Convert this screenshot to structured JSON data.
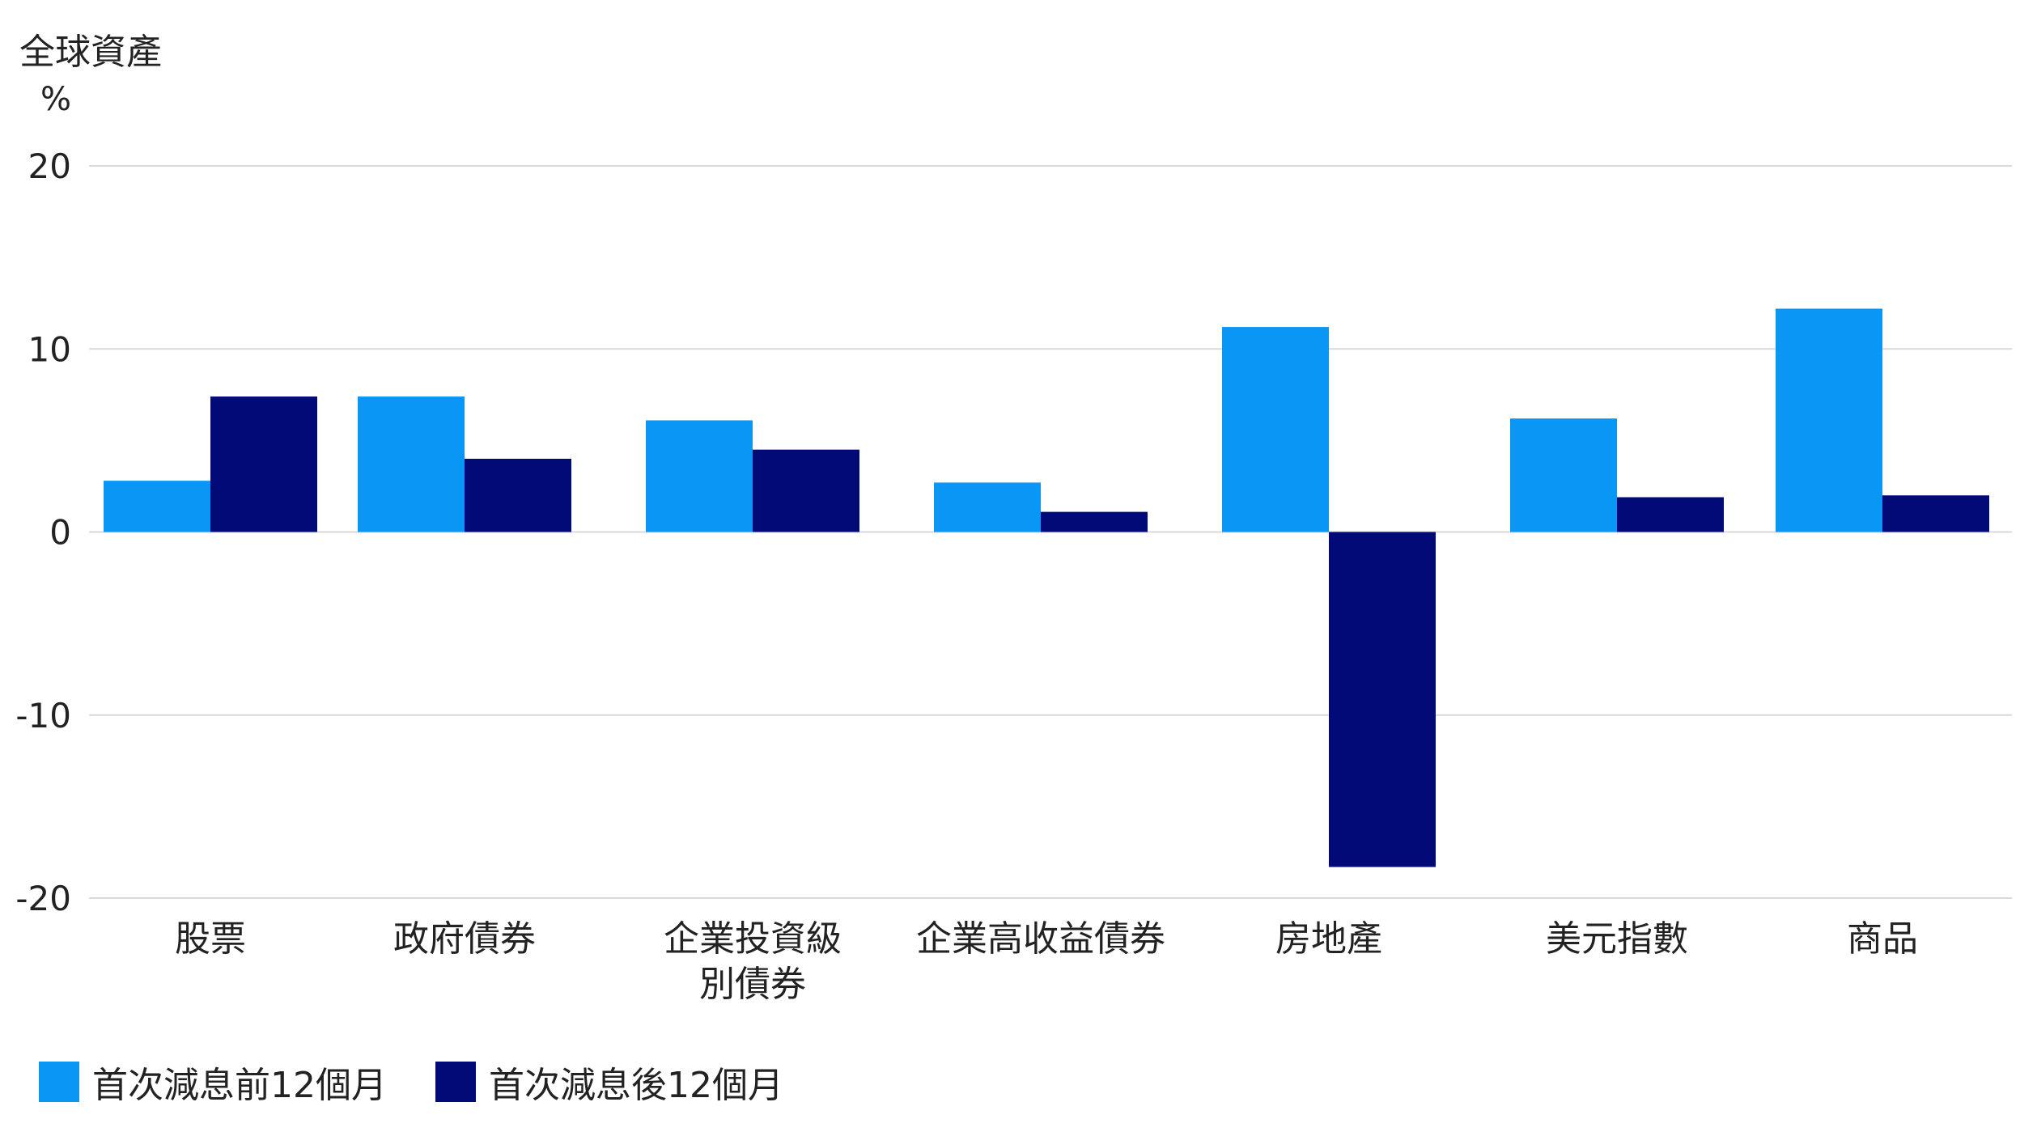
{
  "chart_data": {
    "type": "bar",
    "title": "全球資產",
    "unit": "%",
    "categories": [
      "股票",
      "政府債券",
      "企業投資級別債券",
      "企業高收益債券",
      "房地產",
      "美元指數",
      "商品"
    ],
    "category_lines": [
      [
        "股票"
      ],
      [
        "政府債券"
      ],
      [
        "企業投資級",
        "別債券"
      ],
      [
        "企業高收益債券"
      ],
      [
        "房地產"
      ],
      [
        "美元指數"
      ],
      [
        "商品"
      ]
    ],
    "series": [
      {
        "name": "首次減息前12個月",
        "color": "#0A96F5",
        "values": [
          2.8,
          7.4,
          6.1,
          2.7,
          11.2,
          6.2,
          12.2
        ]
      },
      {
        "name": "首次減息後12個月",
        "color": "#020A78",
        "values": [
          7.4,
          4.0,
          4.5,
          1.1,
          -18.3,
          1.9,
          2.0
        ]
      }
    ],
    "ylim": [
      -20,
      20
    ],
    "yticks": [
      20,
      10,
      0,
      -10,
      -20
    ],
    "grid": true,
    "legend": "bottom-left"
  }
}
